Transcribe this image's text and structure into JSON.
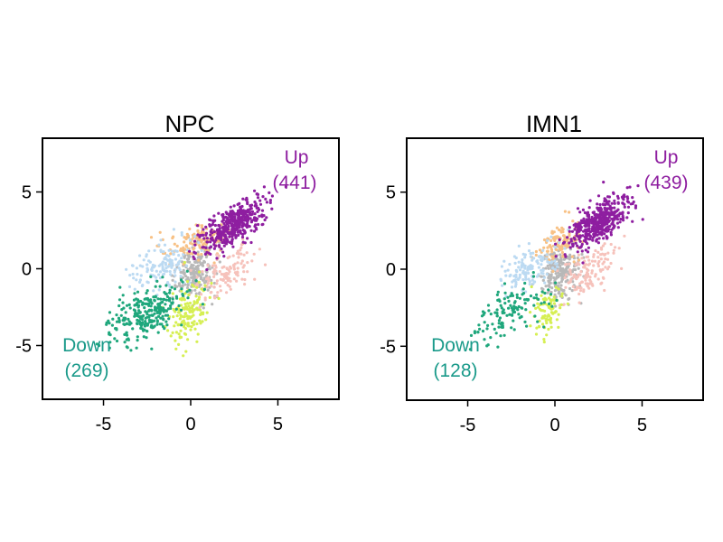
{
  "colors": {
    "up": "#8e1ea0",
    "down": "#1a9a8a",
    "gray": "#b8b8b8",
    "orange": "#f8c185",
    "pink": "#f6c2bb",
    "lightblue": "#bcdaf2",
    "teal": "#1fa77c",
    "yellow": "#d6ef53",
    "axis": "#000000"
  },
  "chart_data": [
    {
      "type": "scatter",
      "title": "NPC",
      "xlabel": "",
      "ylabel": "",
      "xlim": [
        -8.5,
        8.5
      ],
      "ylim": [
        -8.5,
        8.5
      ],
      "xticks": [
        -5,
        0,
        5
      ],
      "yticks": [
        5,
        0,
        -5
      ],
      "grid": false,
      "annotations": {
        "up_label": "Up",
        "up_count": "(441)",
        "down_label": "Down",
        "down_count": "(269)"
      },
      "groups": [
        {
          "key": "gray",
          "color": "gray",
          "center": [
            0.2,
            -0.3
          ],
          "spread": [
            0.55,
            0.85
          ],
          "count": 220,
          "corr": 0.1
        },
        {
          "key": "orange",
          "color": "orange",
          "center": [
            0.5,
            1.8
          ],
          "spread": [
            0.9,
            0.6
          ],
          "count": 140,
          "corr": 0.4
        },
        {
          "key": "pink",
          "color": "pink",
          "center": [
            2.0,
            -0.2
          ],
          "spread": [
            0.8,
            0.9
          ],
          "count": 120,
          "corr": 0.5
        },
        {
          "key": "lightblue",
          "color": "lightblue",
          "center": [
            -1.6,
            0.2
          ],
          "spread": [
            0.9,
            0.8
          ],
          "count": 130,
          "corr": 0.5
        },
        {
          "key": "yellow",
          "color": "yellow",
          "center": [
            -0.2,
            -2.8
          ],
          "spread": [
            0.55,
            0.9
          ],
          "count": 140,
          "corr": 0.2
        },
        {
          "key": "teal",
          "color": "teal",
          "center": [
            -2.6,
            -2.9
          ],
          "spread": [
            1.1,
            1.0
          ],
          "count": 269,
          "corr": 0.6
        },
        {
          "key": "up",
          "color": "up",
          "center": [
            2.5,
            2.9
          ],
          "spread": [
            0.9,
            0.85
          ],
          "count": 441,
          "corr": 0.7
        }
      ],
      "seed": 17
    },
    {
      "type": "scatter",
      "title": "IMN1",
      "xlabel": "",
      "ylabel": "",
      "xlim": [
        -8.5,
        8.5
      ],
      "ylim": [
        -8.5,
        8.5
      ],
      "xticks": [
        -5,
        0,
        5
      ],
      "yticks": [
        5,
        0,
        -5
      ],
      "grid": false,
      "annotations": {
        "up_label": "Up",
        "up_count": "(439)",
        "down_label": "Down",
        "down_count": "(128)"
      },
      "groups": [
        {
          "key": "gray",
          "color": "gray",
          "center": [
            0.2,
            -0.2
          ],
          "spread": [
            0.55,
            0.85
          ],
          "count": 230,
          "corr": 0.1
        },
        {
          "key": "orange",
          "color": "orange",
          "center": [
            0.3,
            1.7
          ],
          "spread": [
            0.6,
            0.6
          ],
          "count": 120,
          "corr": 0.3
        },
        {
          "key": "pink",
          "color": "pink",
          "center": [
            2.0,
            -0.1
          ],
          "spread": [
            0.8,
            0.9
          ],
          "count": 130,
          "corr": 0.5
        },
        {
          "key": "lightblue",
          "color": "lightblue",
          "center": [
            -1.4,
            0.1
          ],
          "spread": [
            0.9,
            0.8
          ],
          "count": 130,
          "corr": 0.5
        },
        {
          "key": "yellow",
          "color": "yellow",
          "center": [
            -0.4,
            -2.6
          ],
          "spread": [
            0.45,
            0.7
          ],
          "count": 90,
          "corr": 0.2
        },
        {
          "key": "teal",
          "color": "teal",
          "center": [
            -2.6,
            -2.8
          ],
          "spread": [
            1.0,
            0.9
          ],
          "count": 128,
          "corr": 0.6
        },
        {
          "key": "up",
          "color": "up",
          "center": [
            2.5,
            3.0
          ],
          "spread": [
            0.9,
            0.85
          ],
          "count": 439,
          "corr": 0.7
        }
      ],
      "seed": 29
    }
  ]
}
